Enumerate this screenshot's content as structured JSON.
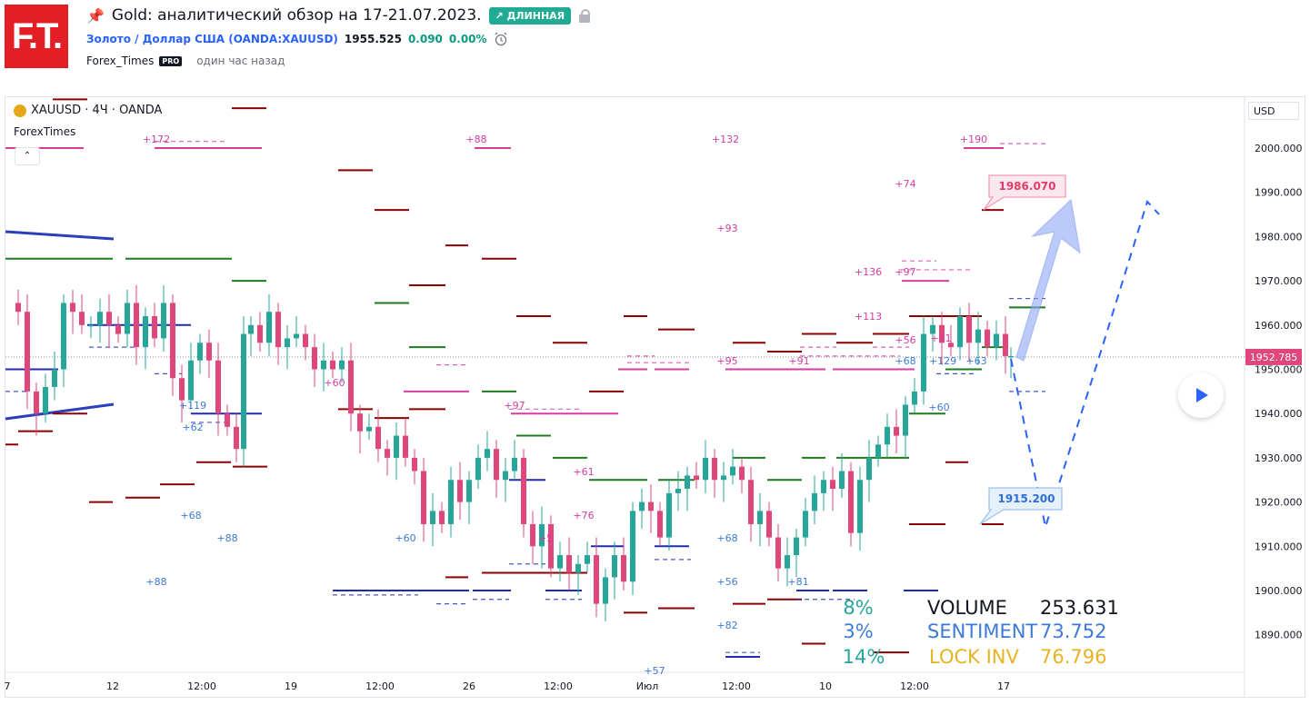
{
  "header": {
    "logo_text": "F.T.",
    "title": "Gold: аналитический обзор на 17-21.07.2023.",
    "badge": "↗ ДЛИННАЯ",
    "symbol_link": "Золото / Доллар США (OANDA:XAUUSD)",
    "price": "1955.525",
    "change": "0.090",
    "change_pct": "0.00%",
    "author": "Forex_Times",
    "author_badge": "PRO",
    "time_ago": "один час назад"
  },
  "chart": {
    "ticker": "XAUUSD · 4Ч · OANDA",
    "indicator": "ForexTimes",
    "collapse_glyph": "⌃",
    "currency": "USD",
    "current_price": "1952.785",
    "target_high": "1986.070",
    "target_low": "1915.200",
    "y_ticks": [
      "2000.000",
      "1990.000",
      "1980.000",
      "1970.000",
      "1960.000",
      "1950.000",
      "1940.000",
      "1930.000",
      "1920.000",
      "1910.000",
      "1900.000",
      "1890.000"
    ],
    "x_ticks": [
      "7",
      "12",
      "12:00",
      "19",
      "12:00",
      "26",
      "12:00",
      "Июл",
      "12:00",
      "10",
      "12:00",
      "17"
    ],
    "annotations_pink": [
      "+172",
      "+88",
      "+132",
      "+190",
      "+74",
      "+93",
      "+136",
      "+97",
      "+113",
      "+56",
      "+95",
      "+91",
      "+97",
      "+61",
      "+76",
      "+5",
      "+60",
      "+11"
    ],
    "annotations_blue": [
      "+119",
      "+62",
      "+68",
      "+88",
      "+88",
      "+60",
      "+68",
      "+56",
      "+82",
      "+81",
      "+68",
      "+129",
      "+63",
      "+57"
    ],
    "annotations_green": [
      "+60"
    ],
    "stats": {
      "volume_pct": "8%",
      "volume_label": "VOLUME",
      "volume_value": "253.631",
      "sentiment_pct": "3%",
      "sentiment_label": "SENTIMENT",
      "sentiment_value": "73.752",
      "lock_pct": "14%",
      "lock_label": "LOCK INV",
      "lock_value": "76.796"
    },
    "colors": {
      "up": "#26a69a",
      "down": "#e0457b",
      "dark_red": "#8b0000",
      "navy": "#1f2bb0",
      "green": "#1e7b1e",
      "pink": "#d63da0",
      "blue_line": "#2962ff"
    }
  }
}
